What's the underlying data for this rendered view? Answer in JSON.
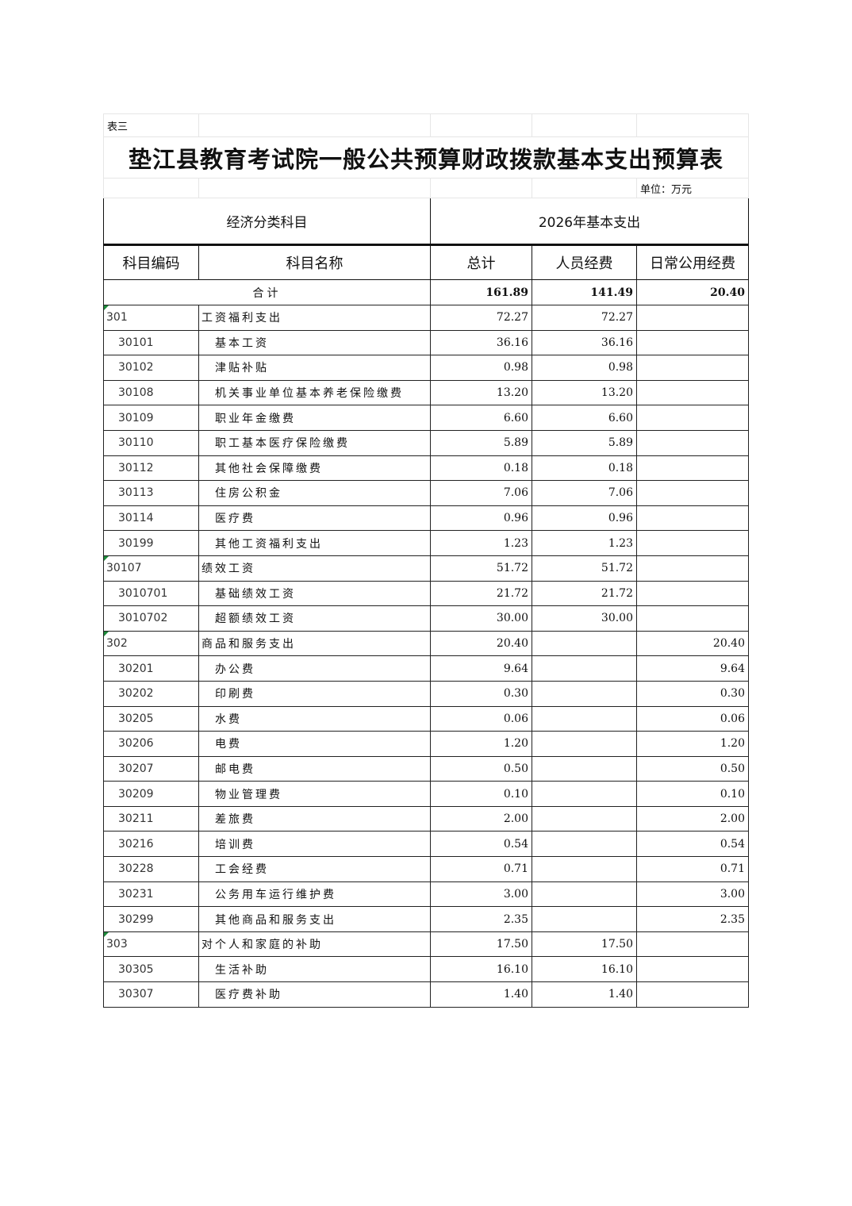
{
  "table_label": "表三",
  "title": "垫江县教育考试院一般公共预算财政拨款基本支出预算表",
  "unit": "单位：万元",
  "header": {
    "group_left": "经济分类科目",
    "group_right": "2026年基本支出",
    "col_code": "科目编码",
    "col_name": "科目名称",
    "col_total": "总计",
    "col_personnel": "人员经费",
    "col_public": "日常公用经费"
  },
  "total_row": {
    "label": "合计",
    "total": "161.89",
    "personnel": "141.49",
    "public": "20.40"
  },
  "rows": [
    {
      "level": 1,
      "code": "301",
      "name": "工资福利支出",
      "total": "72.27",
      "personnel": "72.27",
      "public": ""
    },
    {
      "level": 2,
      "code": "30101",
      "name": "基本工资",
      "total": "36.16",
      "personnel": "36.16",
      "public": ""
    },
    {
      "level": 2,
      "code": "30102",
      "name": "津贴补贴",
      "total": "0.98",
      "personnel": "0.98",
      "public": ""
    },
    {
      "level": 2,
      "code": "30108",
      "name": "机关事业单位基本养老保险缴费",
      "total": "13.20",
      "personnel": "13.20",
      "public": ""
    },
    {
      "level": 2,
      "code": "30109",
      "name": "职业年金缴费",
      "total": "6.60",
      "personnel": "6.60",
      "public": ""
    },
    {
      "level": 2,
      "code": "30110",
      "name": "职工基本医疗保险缴费",
      "total": "5.89",
      "personnel": "5.89",
      "public": ""
    },
    {
      "level": 2,
      "code": "30112",
      "name": "其他社会保障缴费",
      "total": "0.18",
      "personnel": "0.18",
      "public": ""
    },
    {
      "level": 2,
      "code": "30113",
      "name": "住房公积金",
      "total": "7.06",
      "personnel": "7.06",
      "public": ""
    },
    {
      "level": 2,
      "code": "30114",
      "name": "医疗费",
      "total": "0.96",
      "personnel": "0.96",
      "public": ""
    },
    {
      "level": 2,
      "code": "30199",
      "name": "其他工资福利支出",
      "total": "1.23",
      "personnel": "1.23",
      "public": ""
    },
    {
      "level": 1,
      "code": "30107",
      "name": "绩效工资",
      "total": "51.72",
      "personnel": "51.72",
      "public": ""
    },
    {
      "level": 2,
      "code": "3010701",
      "name": "基础绩效工资",
      "total": "21.72",
      "personnel": "21.72",
      "public": ""
    },
    {
      "level": 2,
      "code": "3010702",
      "name": "超额绩效工资",
      "total": "30.00",
      "personnel": "30.00",
      "public": ""
    },
    {
      "level": 1,
      "code": "302",
      "name": "商品和服务支出",
      "total": "20.40",
      "personnel": "",
      "public": "20.40"
    },
    {
      "level": 2,
      "code": "30201",
      "name": "办公费",
      "total": "9.64",
      "personnel": "",
      "public": "9.64"
    },
    {
      "level": 2,
      "code": "30202",
      "name": "印刷费",
      "total": "0.30",
      "personnel": "",
      "public": "0.30"
    },
    {
      "level": 2,
      "code": "30205",
      "name": "水费",
      "total": "0.06",
      "personnel": "",
      "public": "0.06"
    },
    {
      "level": 2,
      "code": "30206",
      "name": "电费",
      "total": "1.20",
      "personnel": "",
      "public": "1.20"
    },
    {
      "level": 2,
      "code": "30207",
      "name": "邮电费",
      "total": "0.50",
      "personnel": "",
      "public": "0.50"
    },
    {
      "level": 2,
      "code": "30209",
      "name": "物业管理费",
      "total": "0.10",
      "personnel": "",
      "public": "0.10"
    },
    {
      "level": 2,
      "code": "30211",
      "name": "差旅费",
      "total": "2.00",
      "personnel": "",
      "public": "2.00"
    },
    {
      "level": 2,
      "code": "30216",
      "name": "培训费",
      "total": "0.54",
      "personnel": "",
      "public": "0.54"
    },
    {
      "level": 2,
      "code": "30228",
      "name": "工会经费",
      "total": "0.71",
      "personnel": "",
      "public": "0.71"
    },
    {
      "level": 2,
      "code": "30231",
      "name": "公务用车运行维护费",
      "total": "3.00",
      "personnel": "",
      "public": "3.00"
    },
    {
      "level": 2,
      "code": "30299",
      "name": "其他商品和服务支出",
      "total": "2.35",
      "personnel": "",
      "public": "2.35"
    },
    {
      "level": 1,
      "code": "303",
      "name": "对个人和家庭的补助",
      "total": "17.50",
      "personnel": "17.50",
      "public": ""
    },
    {
      "level": 2,
      "code": "30305",
      "name": "生活补助",
      "total": "16.10",
      "personnel": "16.10",
      "public": ""
    },
    {
      "level": 2,
      "code": "30307",
      "name": "医疗费补助",
      "total": "1.40",
      "personnel": "1.40",
      "public": ""
    }
  ]
}
